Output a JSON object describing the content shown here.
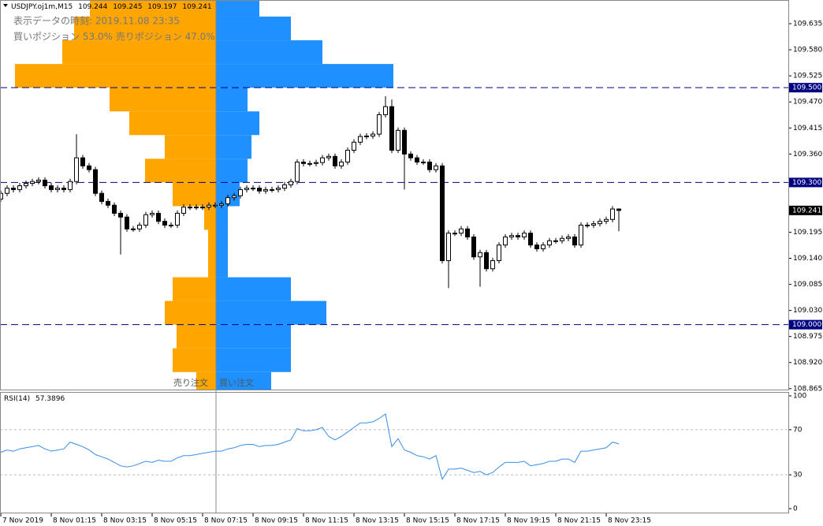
{
  "chart_data": [
    {
      "type": "candlestick",
      "title": "USDJPY.oj1m,M15",
      "open": [
        109.265,
        109.277,
        109.288,
        109.285,
        109.293,
        109.298,
        109.302,
        109.305,
        109.293,
        109.285,
        109.288,
        109.285,
        109.302,
        109.352,
        109.335,
        109.327,
        109.277,
        109.26,
        109.252,
        109.235,
        109.227,
        109.202,
        109.202,
        109.21,
        109.232,
        109.235,
        109.218,
        109.21,
        109.21,
        109.235,
        109.248,
        109.248,
        109.248,
        109.248,
        109.252,
        109.252,
        109.255,
        109.268,
        109.272,
        109.285,
        109.288,
        109.288,
        109.282,
        109.285,
        109.285,
        109.288,
        109.295,
        109.302,
        109.343,
        109.34,
        109.34,
        109.342,
        109.352,
        109.355,
        109.335,
        109.343,
        109.368,
        109.385,
        109.397,
        109.398,
        109.402,
        109.443,
        109.46,
        109.368,
        109.41,
        109.36,
        109.352,
        109.343,
        109.343,
        109.327,
        109.335,
        109.135,
        109.193,
        109.193,
        109.202,
        109.185,
        109.143,
        109.152,
        109.118,
        109.135,
        109.168,
        109.185,
        109.188,
        109.185,
        109.193,
        109.168,
        109.16,
        109.168,
        109.177,
        109.177,
        109.182,
        109.185,
        109.168,
        109.21,
        109.21,
        109.213,
        109.218,
        109.222,
        109.244
      ],
      "high": [
        109.283,
        109.294,
        109.294,
        109.299,
        109.304,
        109.308,
        109.311,
        109.311,
        109.299,
        109.294,
        109.294,
        109.308,
        109.402,
        109.358,
        109.341,
        109.333,
        109.283,
        109.266,
        109.258,
        109.241,
        109.233,
        109.208,
        109.216,
        109.238,
        109.241,
        109.241,
        109.224,
        109.216,
        109.241,
        109.254,
        109.254,
        109.254,
        109.254,
        109.258,
        109.258,
        109.261,
        109.274,
        109.278,
        109.291,
        109.294,
        109.294,
        109.294,
        109.291,
        109.291,
        109.294,
        109.301,
        109.308,
        109.349,
        109.349,
        109.346,
        109.348,
        109.358,
        109.361,
        109.361,
        109.349,
        109.374,
        109.391,
        109.403,
        109.404,
        109.408,
        109.449,
        109.482,
        109.475,
        109.416,
        109.416,
        109.366,
        109.358,
        109.349,
        109.349,
        109.341,
        109.341,
        109.199,
        109.199,
        109.208,
        109.208,
        109.191,
        109.158,
        109.158,
        109.141,
        109.174,
        109.191,
        109.194,
        109.194,
        109.199,
        109.199,
        109.174,
        109.174,
        109.183,
        109.183,
        109.188,
        109.191,
        109.191,
        109.216,
        109.216,
        109.219,
        109.224,
        109.228,
        109.25,
        109.245
      ],
      "low": [
        109.259,
        109.271,
        109.279,
        109.279,
        109.287,
        109.292,
        109.296,
        109.287,
        109.279,
        109.279,
        109.279,
        109.279,
        109.296,
        109.329,
        109.321,
        109.271,
        109.254,
        109.246,
        109.229,
        109.148,
        109.196,
        109.196,
        109.196,
        109.204,
        109.226,
        109.212,
        109.204,
        109.204,
        109.204,
        109.229,
        109.242,
        109.242,
        109.242,
        109.242,
        109.246,
        109.246,
        109.249,
        109.262,
        109.266,
        109.279,
        109.282,
        109.276,
        109.276,
        109.279,
        109.279,
        109.282,
        109.289,
        109.296,
        109.334,
        109.334,
        109.334,
        109.336,
        109.346,
        109.329,
        109.329,
        109.337,
        109.362,
        109.379,
        109.391,
        109.392,
        109.396,
        109.437,
        109.362,
        109.362,
        109.285,
        109.346,
        109.337,
        109.337,
        109.321,
        109.321,
        109.129,
        109.077,
        109.187,
        109.187,
        109.179,
        109.137,
        109.08,
        109.112,
        109.112,
        109.129,
        109.162,
        109.179,
        109.179,
        109.179,
        109.162,
        109.154,
        109.154,
        109.162,
        109.171,
        109.171,
        109.176,
        109.162,
        109.162,
        109.204,
        109.204,
        109.207,
        109.212,
        109.216,
        109.197
      ],
      "close": [
        109.277,
        109.288,
        109.285,
        109.293,
        109.298,
        109.302,
        109.305,
        109.293,
        109.285,
        109.288,
        109.285,
        109.302,
        109.352,
        109.335,
        109.327,
        109.277,
        109.26,
        109.252,
        109.235,
        109.227,
        109.202,
        109.202,
        109.21,
        109.232,
        109.235,
        109.218,
        109.21,
        109.21,
        109.235,
        109.248,
        109.248,
        109.248,
        109.248,
        109.252,
        109.252,
        109.255,
        109.268,
        109.272,
        109.285,
        109.288,
        109.288,
        109.282,
        109.285,
        109.285,
        109.288,
        109.295,
        109.302,
        109.343,
        109.34,
        109.34,
        109.342,
        109.352,
        109.355,
        109.335,
        109.343,
        109.368,
        109.385,
        109.397,
        109.398,
        109.402,
        109.443,
        109.46,
        109.368,
        109.41,
        109.36,
        109.352,
        109.343,
        109.343,
        109.327,
        109.335,
        109.135,
        109.193,
        109.193,
        109.202,
        109.185,
        109.143,
        109.152,
        109.118,
        109.135,
        109.168,
        109.185,
        109.188,
        109.185,
        109.193,
        109.168,
        109.16,
        109.168,
        109.177,
        109.177,
        109.182,
        109.185,
        109.168,
        109.21,
        109.21,
        109.213,
        109.218,
        109.222,
        109.244,
        109.241
      ],
      "xlim": [
        -0.125,
        124.875
      ],
      "xticks": [
        {
          "value": 0,
          "label": "7 Nov 2019"
        },
        {
          "value": 8,
          "label": "8 Nov 01:15"
        },
        {
          "value": 16,
          "label": "8 Nov 03:15"
        },
        {
          "value": 24,
          "label": "8 Nov 05:15"
        },
        {
          "value": 32,
          "label": "8 Nov 07:15"
        },
        {
          "value": 40,
          "label": "8 Nov 09:15"
        },
        {
          "value": 48,
          "label": "8 Nov 11:15"
        },
        {
          "value": 56,
          "label": "8 Nov 13:15"
        },
        {
          "value": 64,
          "label": "8 Nov 15:15"
        },
        {
          "value": 72,
          "label": "8 Nov 17:15"
        },
        {
          "value": 80,
          "label": "8 Nov 19:15"
        },
        {
          "value": 88,
          "label": "8 Nov 21:15"
        },
        {
          "value": 96,
          "label": "8 Nov 23:15"
        }
      ],
      "ylim": [
        108.863,
        109.685
      ],
      "yticks": [
        {
          "value": 109.635,
          "label": "109.635"
        },
        {
          "value": 109.58,
          "label": "109.580"
        },
        {
          "value": 109.525,
          "label": "109.525"
        },
        {
          "value": 109.47,
          "label": "109.470"
        },
        {
          "value": 109.415,
          "label": "109.415"
        },
        {
          "value": 109.36,
          "label": "109.360"
        },
        {
          "value": 109.195,
          "label": "109.195"
        },
        {
          "value": 109.14,
          "label": "109.140"
        },
        {
          "value": 109.085,
          "label": "109.085"
        },
        {
          "value": 109.03,
          "label": "109.030"
        },
        {
          "value": 108.975,
          "label": "108.975"
        },
        {
          "value": 108.92,
          "label": "108.920"
        },
        {
          "value": 108.865,
          "label": "108.865"
        }
      ],
      "hlines": [
        {
          "value": 109.5,
          "label": "109.500"
        },
        {
          "value": 109.3,
          "label": "109.300"
        },
        {
          "value": 109.0,
          "label": "109.000"
        }
      ],
      "hline_color": "#000080",
      "order_book": {
        "bins": [
          108.85,
          108.9,
          108.95,
          109.0,
          109.05,
          109.1,
          109.15,
          109.2,
          109.25,
          109.3,
          109.35,
          109.4,
          109.45,
          109.5,
          109.55,
          109.6,
          109.65,
          109.7
        ],
        "xlim": [
          -5.48,
          14.52
        ],
        "series": [
          {
            "name": "売り注文",
            "color": "#ffa500",
            "values": [
              0.5,
              1.1,
              1.0,
              1.3,
              1.1,
              0.2,
              0.2,
              0.3,
              1.1,
              1.8,
              1.3,
              2.2,
              2.7,
              5.1,
              3.9,
              3.6,
              3.2
            ]
          },
          {
            "name": "買い注文",
            "color": "#1e90ff",
            "values": [
              1.4,
              1.9,
              1.9,
              2.8,
              1.9,
              0.3,
              0.3,
              0.3,
              0.6,
              0.8,
              0.9,
              1.1,
              0.8,
              4.5,
              2.7,
              1.9,
              1.1
            ]
          }
        ]
      }
    },
    {
      "type": "line",
      "title": "RSI(14)",
      "color": "#3a8ee6",
      "values": [
        50,
        52,
        51,
        53,
        54,
        55,
        56,
        53,
        51,
        52,
        53,
        59,
        57,
        55,
        52,
        48,
        46,
        44,
        41,
        38,
        37,
        38,
        40,
        42,
        41,
        43,
        42,
        42,
        45,
        47,
        47,
        48,
        49,
        50,
        51,
        51,
        53,
        54,
        56,
        57,
        57,
        55,
        56,
        56,
        57,
        59,
        61,
        71,
        69,
        69,
        70,
        72,
        64,
        61,
        64,
        68,
        72,
        76,
        76,
        77,
        80,
        84,
        55,
        62,
        52,
        50,
        47,
        46,
        44,
        47,
        26,
        35,
        35,
        36,
        34,
        32,
        33,
        30,
        32,
        37,
        41,
        41,
        41,
        42,
        38,
        39,
        40,
        42,
        42,
        44,
        44,
        41,
        51,
        51,
        52,
        53,
        54,
        59,
        57.3896
      ],
      "xlim": [
        -0.125,
        124.875
      ],
      "ylim": [
        -3.5,
        103.5
      ],
      "yticks": [
        100,
        70,
        30,
        0
      ],
      "levels": [
        70,
        30
      ]
    }
  ],
  "overlay": {
    "time_label": "表示データの時刻: 2019.11.08 23:35",
    "position_label": "買いポジション 53.0% 売りポジション 47.0%"
  }
}
